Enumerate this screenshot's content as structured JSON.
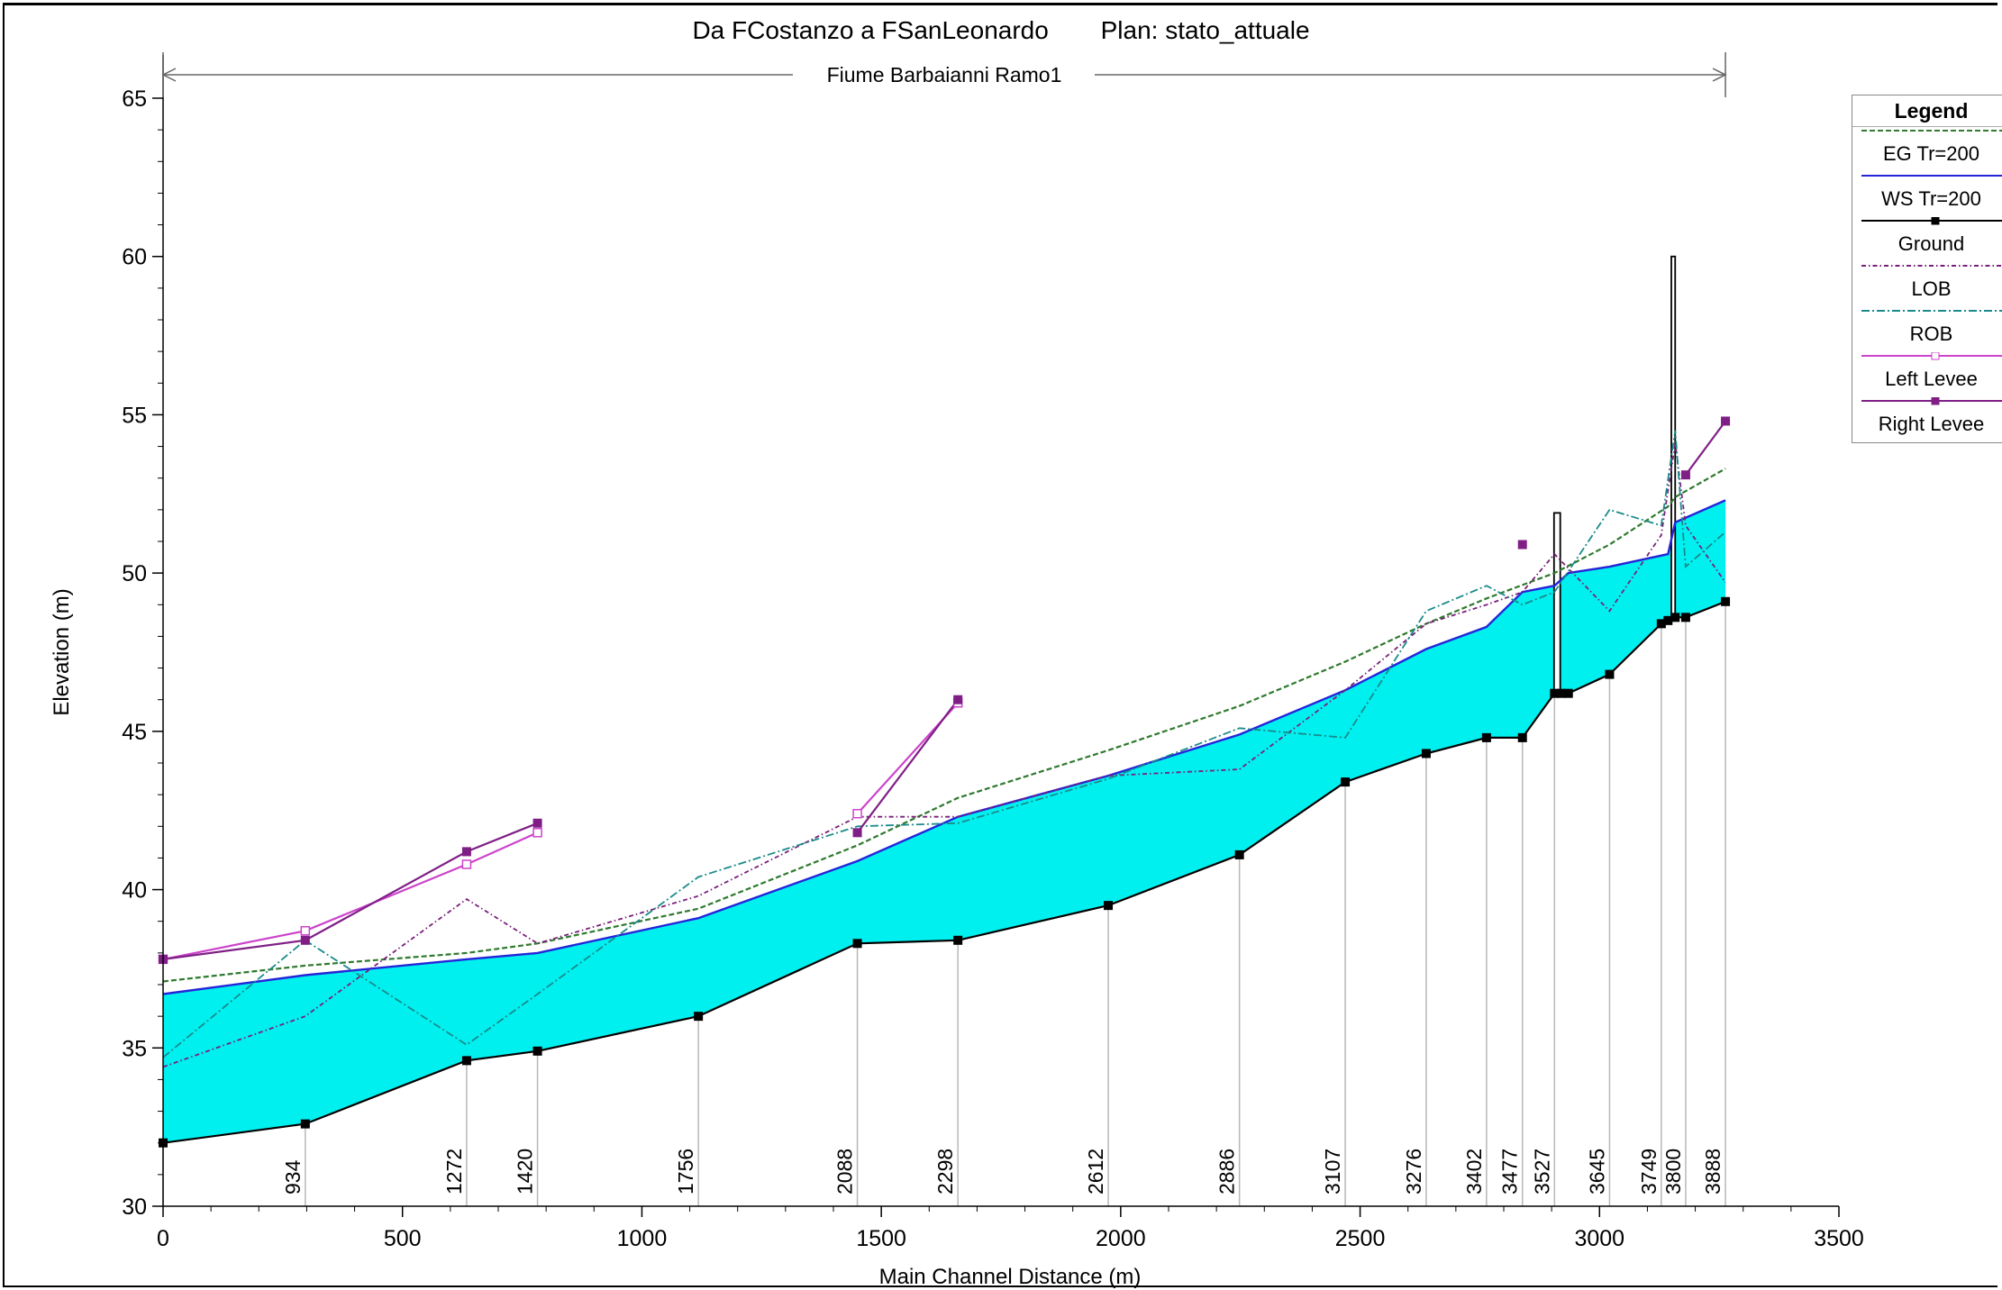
{
  "title": "Da FCostanzo a FSanLeonardo",
  "plan": "Plan: stato_attuale",
  "chart_data": {
    "type": "line",
    "reach": "Fiume Barbaianni Ramo1",
    "xlabel": "Main Channel Distance (m)",
    "ylabel": "Elevation (m)",
    "xlim": [
      0,
      3500
    ],
    "ylim": [
      30,
      65
    ],
    "xticks": [
      0,
      500,
      1000,
      1500,
      2000,
      2500,
      3000,
      3500
    ],
    "yticks": [
      30,
      35,
      40,
      45,
      50,
      55,
      60,
      65
    ],
    "grid": false,
    "legend_position": "right",
    "colors": {
      "water_fill": "#00f0f0",
      "ws": "#2525d8",
      "eg": "#2f7a2f",
      "ground": "#000000",
      "lob": "#7a1f7a",
      "rob": "#1a8a8a",
      "left_levee": "#cc44cc",
      "right_levee": "#7f1f86"
    },
    "stations": [
      {
        "label": "",
        "x": 0
      },
      {
        "label": "934",
        "x": 297
      },
      {
        "label": "1272",
        "x": 634
      },
      {
        "label": "1420",
        "x": 782
      },
      {
        "label": "1756",
        "x": 1118
      },
      {
        "label": "2088",
        "x": 1450
      },
      {
        "label": "2298",
        "x": 1660
      },
      {
        "label": "2612",
        "x": 1974
      },
      {
        "label": "2886",
        "x": 2248
      },
      {
        "label": "3107",
        "x": 2469
      },
      {
        "label": "3276",
        "x": 2638
      },
      {
        "label": "3402",
        "x": 2764
      },
      {
        "label": "3477",
        "x": 2839
      },
      {
        "label": "3527",
        "x": 2906
      },
      {
        "label": "3645",
        "x": 3021
      },
      {
        "label": "3749",
        "x": 3129
      },
      {
        "label": "3800",
        "x": 3180
      },
      {
        "label": "3888",
        "x": 3263
      }
    ],
    "ground": [
      [
        0,
        32.0
      ],
      [
        297,
        32.6
      ],
      [
        634,
        34.6
      ],
      [
        782,
        34.9
      ],
      [
        1118,
        36.0
      ],
      [
        1450,
        38.3
      ],
      [
        1660,
        38.4
      ],
      [
        1974,
        39.5
      ],
      [
        2248,
        41.1
      ],
      [
        2469,
        43.4
      ],
      [
        2638,
        44.3
      ],
      [
        2764,
        44.8
      ],
      [
        2839,
        44.8
      ],
      [
        2906,
        46.2
      ],
      [
        2920,
        46.2
      ],
      [
        2935,
        46.2
      ],
      [
        3021,
        46.8
      ],
      [
        3129,
        48.4
      ],
      [
        3143,
        48.5
      ],
      [
        3158,
        48.6
      ],
      [
        3180,
        48.6
      ],
      [
        3263,
        49.1
      ]
    ],
    "series": [
      {
        "name": "EG  Tr=200",
        "points": [
          [
            0,
            37.1
          ],
          [
            297,
            37.6
          ],
          [
            634,
            38.0
          ],
          [
            782,
            38.3
          ],
          [
            1118,
            39.4
          ],
          [
            1450,
            41.4
          ],
          [
            1660,
            42.9
          ],
          [
            1974,
            44.4
          ],
          [
            2248,
            45.8
          ],
          [
            2469,
            47.2
          ],
          [
            2638,
            48.4
          ],
          [
            2764,
            49.2
          ],
          [
            2906,
            50.0
          ],
          [
            3021,
            50.9
          ],
          [
            3143,
            52.1
          ],
          [
            3158,
            52.4
          ],
          [
            3263,
            53.3
          ]
        ]
      },
      {
        "name": "WS  Tr=200",
        "points": [
          [
            0,
            36.7
          ],
          [
            297,
            37.3
          ],
          [
            634,
            37.8
          ],
          [
            782,
            38.0
          ],
          [
            1118,
            39.1
          ],
          [
            1450,
            40.9
          ],
          [
            1660,
            42.3
          ],
          [
            1974,
            43.6
          ],
          [
            2248,
            44.9
          ],
          [
            2469,
            46.3
          ],
          [
            2638,
            47.6
          ],
          [
            2764,
            48.3
          ],
          [
            2839,
            49.4
          ],
          [
            2906,
            49.6
          ],
          [
            2935,
            50.0
          ],
          [
            3021,
            50.2
          ],
          [
            3143,
            50.6
          ],
          [
            3158,
            51.6
          ],
          [
            3263,
            52.3
          ]
        ]
      },
      {
        "name": "LOB",
        "points": [
          [
            0,
            34.4
          ],
          [
            297,
            36.0
          ],
          [
            634,
            39.7
          ],
          [
            782,
            38.3
          ],
          [
            1118,
            39.8
          ],
          [
            1450,
            42.3
          ],
          [
            1660,
            42.3
          ],
          [
            1974,
            43.6
          ],
          [
            2248,
            43.8
          ],
          [
            2469,
            46.3
          ],
          [
            2638,
            48.4
          ],
          [
            2764,
            49.0
          ],
          [
            2839,
            49.4
          ],
          [
            2906,
            50.6
          ],
          [
            3021,
            48.8
          ],
          [
            3129,
            51.2
          ],
          [
            3158,
            54.1
          ],
          [
            3180,
            51.5
          ],
          [
            3263,
            49.7
          ]
        ]
      },
      {
        "name": "ROB",
        "points": [
          [
            0,
            34.7
          ],
          [
            297,
            38.4
          ],
          [
            634,
            35.1
          ],
          [
            782,
            36.7
          ],
          [
            1118,
            40.4
          ],
          [
            1450,
            42.0
          ],
          [
            1660,
            42.1
          ],
          [
            1974,
            43.5
          ],
          [
            2248,
            45.1
          ],
          [
            2469,
            44.8
          ],
          [
            2638,
            48.8
          ],
          [
            2764,
            49.6
          ],
          [
            2839,
            49.0
          ],
          [
            2906,
            49.4
          ],
          [
            3021,
            52.0
          ],
          [
            3129,
            51.5
          ],
          [
            3158,
            54.5
          ],
          [
            3180,
            50.2
          ],
          [
            3263,
            51.3
          ]
        ]
      },
      {
        "name": "Left Levee",
        "points": [
          [
            0,
            37.8
          ],
          [
            297,
            38.7
          ],
          [
            634,
            40.8
          ],
          [
            782,
            41.8
          ],
          null,
          [
            1450,
            42.4
          ],
          [
            1660,
            45.9
          ]
        ]
      },
      {
        "name": "Right Levee",
        "points": [
          [
            0,
            37.8
          ],
          [
            297,
            38.4
          ],
          [
            634,
            41.2
          ],
          [
            782,
            42.1
          ],
          null,
          [
            1450,
            41.8
          ],
          [
            1660,
            46.0
          ],
          null,
          [
            2839,
            50.9
          ],
          null,
          [
            3180,
            53.1
          ],
          [
            3263,
            54.8
          ]
        ]
      }
    ],
    "structures": [
      {
        "x1": 2905,
        "x2": 2918,
        "bottom": 46.2,
        "top": 51.9
      },
      {
        "x1": 3150,
        "x2": 3158,
        "bottom": 48.5,
        "top": 60.0
      }
    ]
  },
  "legend": {
    "title": "Legend",
    "items": [
      {
        "label": "EG  Tr=200",
        "style": "eg"
      },
      {
        "label": "WS  Tr=200",
        "style": "ws"
      },
      {
        "label": "Ground",
        "style": "ground"
      },
      {
        "label": "LOB",
        "style": "lob"
      },
      {
        "label": "ROB",
        "style": "rob"
      },
      {
        "label": "Left Levee",
        "style": "left_levee"
      },
      {
        "label": "Right Levee",
        "style": "right_levee"
      }
    ]
  }
}
